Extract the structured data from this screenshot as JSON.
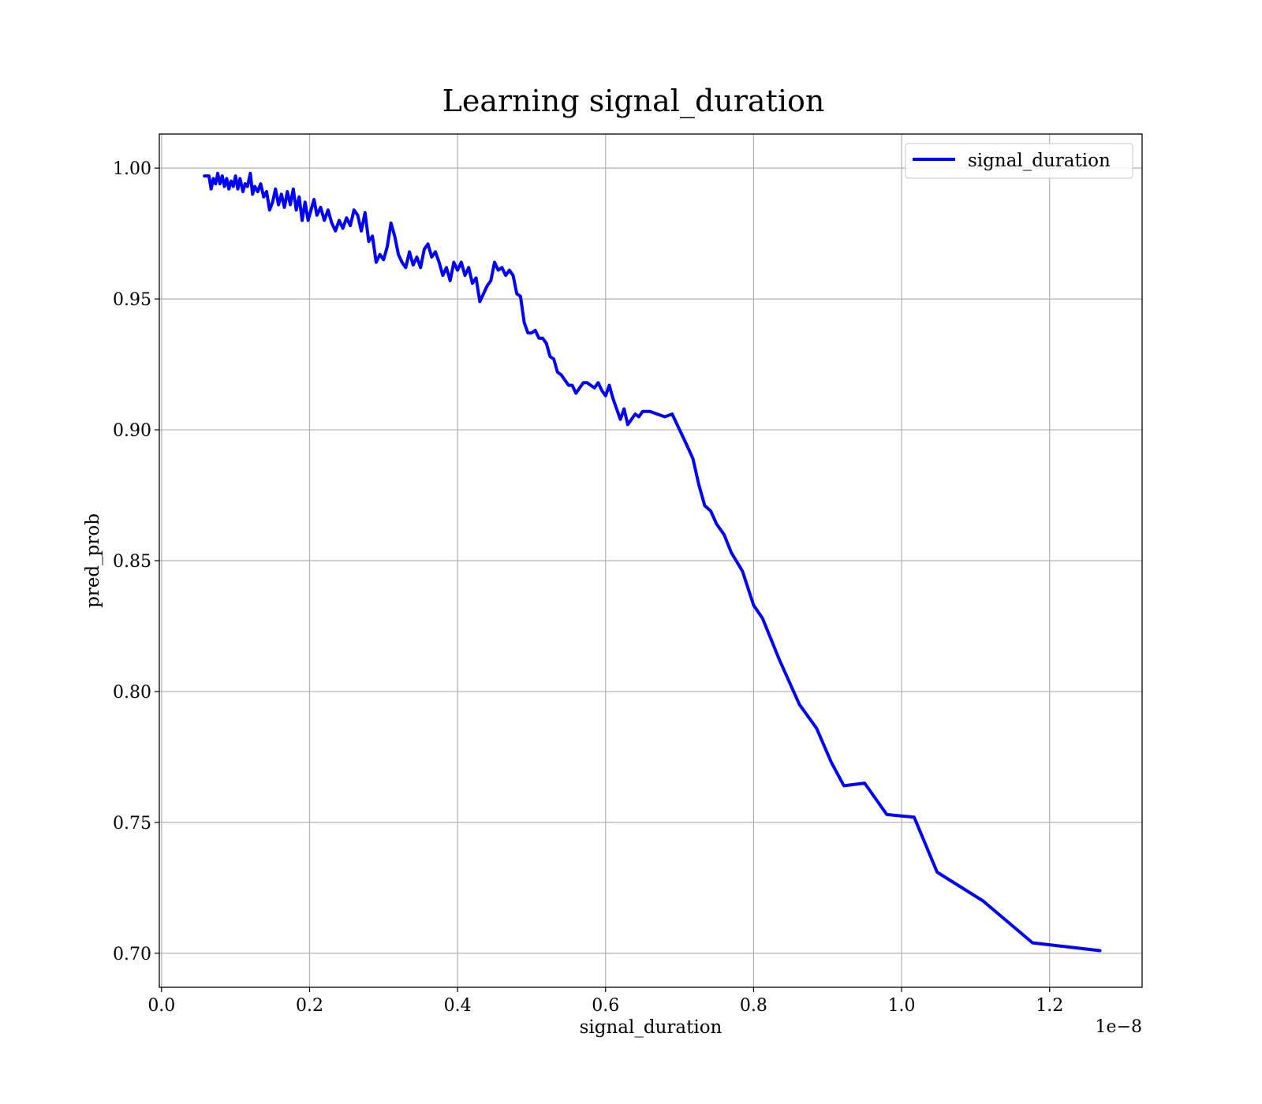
{
  "chart_data": {
    "type": "line",
    "title": "Learning signal_duration",
    "xlabel": "signal_duration",
    "ylabel": "pred_prob",
    "x_offset_text": "1e−8",
    "xlim": [
      -0.003,
      1.325
    ],
    "ylim": [
      0.687,
      1.013
    ],
    "xticks": [
      0.0,
      0.2,
      0.4,
      0.6,
      0.8,
      1.0,
      1.2
    ],
    "xtick_labels": [
      "0.0",
      "0.2",
      "0.4",
      "0.6",
      "0.8",
      "1.0",
      "1.2"
    ],
    "yticks": [
      0.7,
      0.75,
      0.8,
      0.85,
      0.9,
      0.95,
      1.0
    ],
    "ytick_labels": [
      "0.70",
      "0.75",
      "0.80",
      "0.85",
      "0.90",
      "0.95",
      "1.00"
    ],
    "grid": true,
    "legend_position": "top-right",
    "series": [
      {
        "name": "signal_duration",
        "color": "#0000ff",
        "x": [
          0.058,
          0.064,
          0.067,
          0.07,
          0.073,
          0.076,
          0.079,
          0.082,
          0.085,
          0.088,
          0.091,
          0.094,
          0.097,
          0.1,
          0.103,
          0.106,
          0.11,
          0.113,
          0.116,
          0.12,
          0.123,
          0.126,
          0.13,
          0.134,
          0.138,
          0.142,
          0.146,
          0.15,
          0.154,
          0.158,
          0.162,
          0.166,
          0.17,
          0.174,
          0.178,
          0.182,
          0.186,
          0.19,
          0.194,
          0.198,
          0.202,
          0.206,
          0.21,
          0.215,
          0.22,
          0.225,
          0.23,
          0.235,
          0.24,
          0.245,
          0.25,
          0.255,
          0.26,
          0.265,
          0.27,
          0.275,
          0.28,
          0.285,
          0.29,
          0.295,
          0.3,
          0.305,
          0.31,
          0.315,
          0.32,
          0.325,
          0.33,
          0.335,
          0.34,
          0.345,
          0.35,
          0.355,
          0.36,
          0.365,
          0.37,
          0.375,
          0.38,
          0.385,
          0.39,
          0.395,
          0.4,
          0.405,
          0.41,
          0.415,
          0.42,
          0.425,
          0.43,
          0.435,
          0.44,
          0.445,
          0.45,
          0.455,
          0.46,
          0.465,
          0.47,
          0.475,
          0.48,
          0.485,
          0.49,
          0.495,
          0.5,
          0.505,
          0.51,
          0.515,
          0.52,
          0.525,
          0.53,
          0.535,
          0.54,
          0.545,
          0.55,
          0.555,
          0.56,
          0.565,
          0.57,
          0.575,
          0.58,
          0.585,
          0.59,
          0.595,
          0.6,
          0.605,
          0.61,
          0.615,
          0.62,
          0.625,
          0.63,
          0.635,
          0.64,
          0.645,
          0.65,
          0.66,
          0.67,
          0.68,
          0.69,
          0.7,
          0.71,
          0.718,
          0.726,
          0.734,
          0.742,
          0.75,
          0.76,
          0.77,
          0.785,
          0.8,
          0.812,
          0.835,
          0.862,
          0.885,
          0.905,
          0.922,
          0.95,
          0.98,
          1.017,
          1.048,
          1.11,
          1.177,
          1.268
        ],
        "y": [
          0.997,
          0.997,
          0.992,
          0.996,
          0.994,
          0.998,
          0.994,
          0.997,
          0.993,
          0.996,
          0.992,
          0.995,
          0.993,
          0.997,
          0.992,
          0.996,
          0.991,
          0.994,
          0.993,
          0.998,
          0.99,
          0.993,
          0.991,
          0.994,
          0.989,
          0.991,
          0.984,
          0.987,
          0.992,
          0.986,
          0.99,
          0.985,
          0.991,
          0.986,
          0.992,
          0.984,
          0.989,
          0.98,
          0.987,
          0.98,
          0.984,
          0.988,
          0.982,
          0.985,
          0.98,
          0.984,
          0.979,
          0.976,
          0.98,
          0.977,
          0.981,
          0.978,
          0.984,
          0.982,
          0.976,
          0.983,
          0.972,
          0.974,
          0.964,
          0.967,
          0.965,
          0.97,
          0.979,
          0.974,
          0.967,
          0.964,
          0.962,
          0.968,
          0.963,
          0.966,
          0.962,
          0.969,
          0.971,
          0.966,
          0.968,
          0.964,
          0.959,
          0.962,
          0.957,
          0.964,
          0.961,
          0.964,
          0.959,
          0.962,
          0.956,
          0.958,
          0.949,
          0.952,
          0.955,
          0.957,
          0.964,
          0.961,
          0.962,
          0.959,
          0.961,
          0.959,
          0.952,
          0.951,
          0.941,
          0.937,
          0.937,
          0.938,
          0.935,
          0.935,
          0.933,
          0.928,
          0.927,
          0.922,
          0.921,
          0.919,
          0.917,
          0.917,
          0.914,
          0.916,
          0.918,
          0.918,
          0.917,
          0.916,
          0.918,
          0.915,
          0.913,
          0.917,
          0.912,
          0.908,
          0.904,
          0.908,
          0.902,
          0.904,
          0.906,
          0.905,
          0.907,
          0.907,
          0.906,
          0.905,
          0.906,
          0.9,
          0.894,
          0.889,
          0.879,
          0.871,
          0.869,
          0.864,
          0.86,
          0.853,
          0.846,
          0.833,
          0.828,
          0.812,
          0.795,
          0.786,
          0.773,
          0.764,
          0.765,
          0.753,
          0.752,
          0.731,
          0.72,
          0.704,
          0.701
        ]
      }
    ]
  }
}
